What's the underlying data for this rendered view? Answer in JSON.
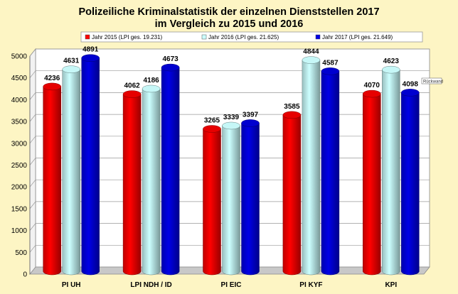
{
  "chart_data": {
    "type": "bar",
    "title": "Polizeiliche Kriminalstatistik der einzelnen Dienststellen 2017",
    "subtitle": "im Vergleich zu 2015 und 2016",
    "categories": [
      "PI UH",
      "LPI NDH / ID",
      "PI EIC",
      "PI KYF",
      "KPI"
    ],
    "series": [
      {
        "name": "Jahr 2015 (LPI ges. 19.231)",
        "values": [
          4236,
          4062,
          3265,
          3585,
          4070
        ],
        "color": "#ff0000"
      },
      {
        "name": "Jahr 2016 (LPI ges. 21.625)",
        "values": [
          4631,
          4186,
          3339,
          4844,
          4623
        ],
        "color": "#ccffff"
      },
      {
        "name": "Jahr 2017 (LPI ges. 21.649)",
        "values": [
          4891,
          4673,
          3397,
          4587,
          4098
        ],
        "color": "#0000e6"
      }
    ],
    "ylim": [
      0,
      5000
    ],
    "yticks": [
      0,
      500,
      1000,
      1500,
      2000,
      2500,
      3000,
      3500,
      4000,
      4500,
      5000
    ],
    "grid": true,
    "legend_position": "top",
    "annotation": "Rückwand"
  }
}
